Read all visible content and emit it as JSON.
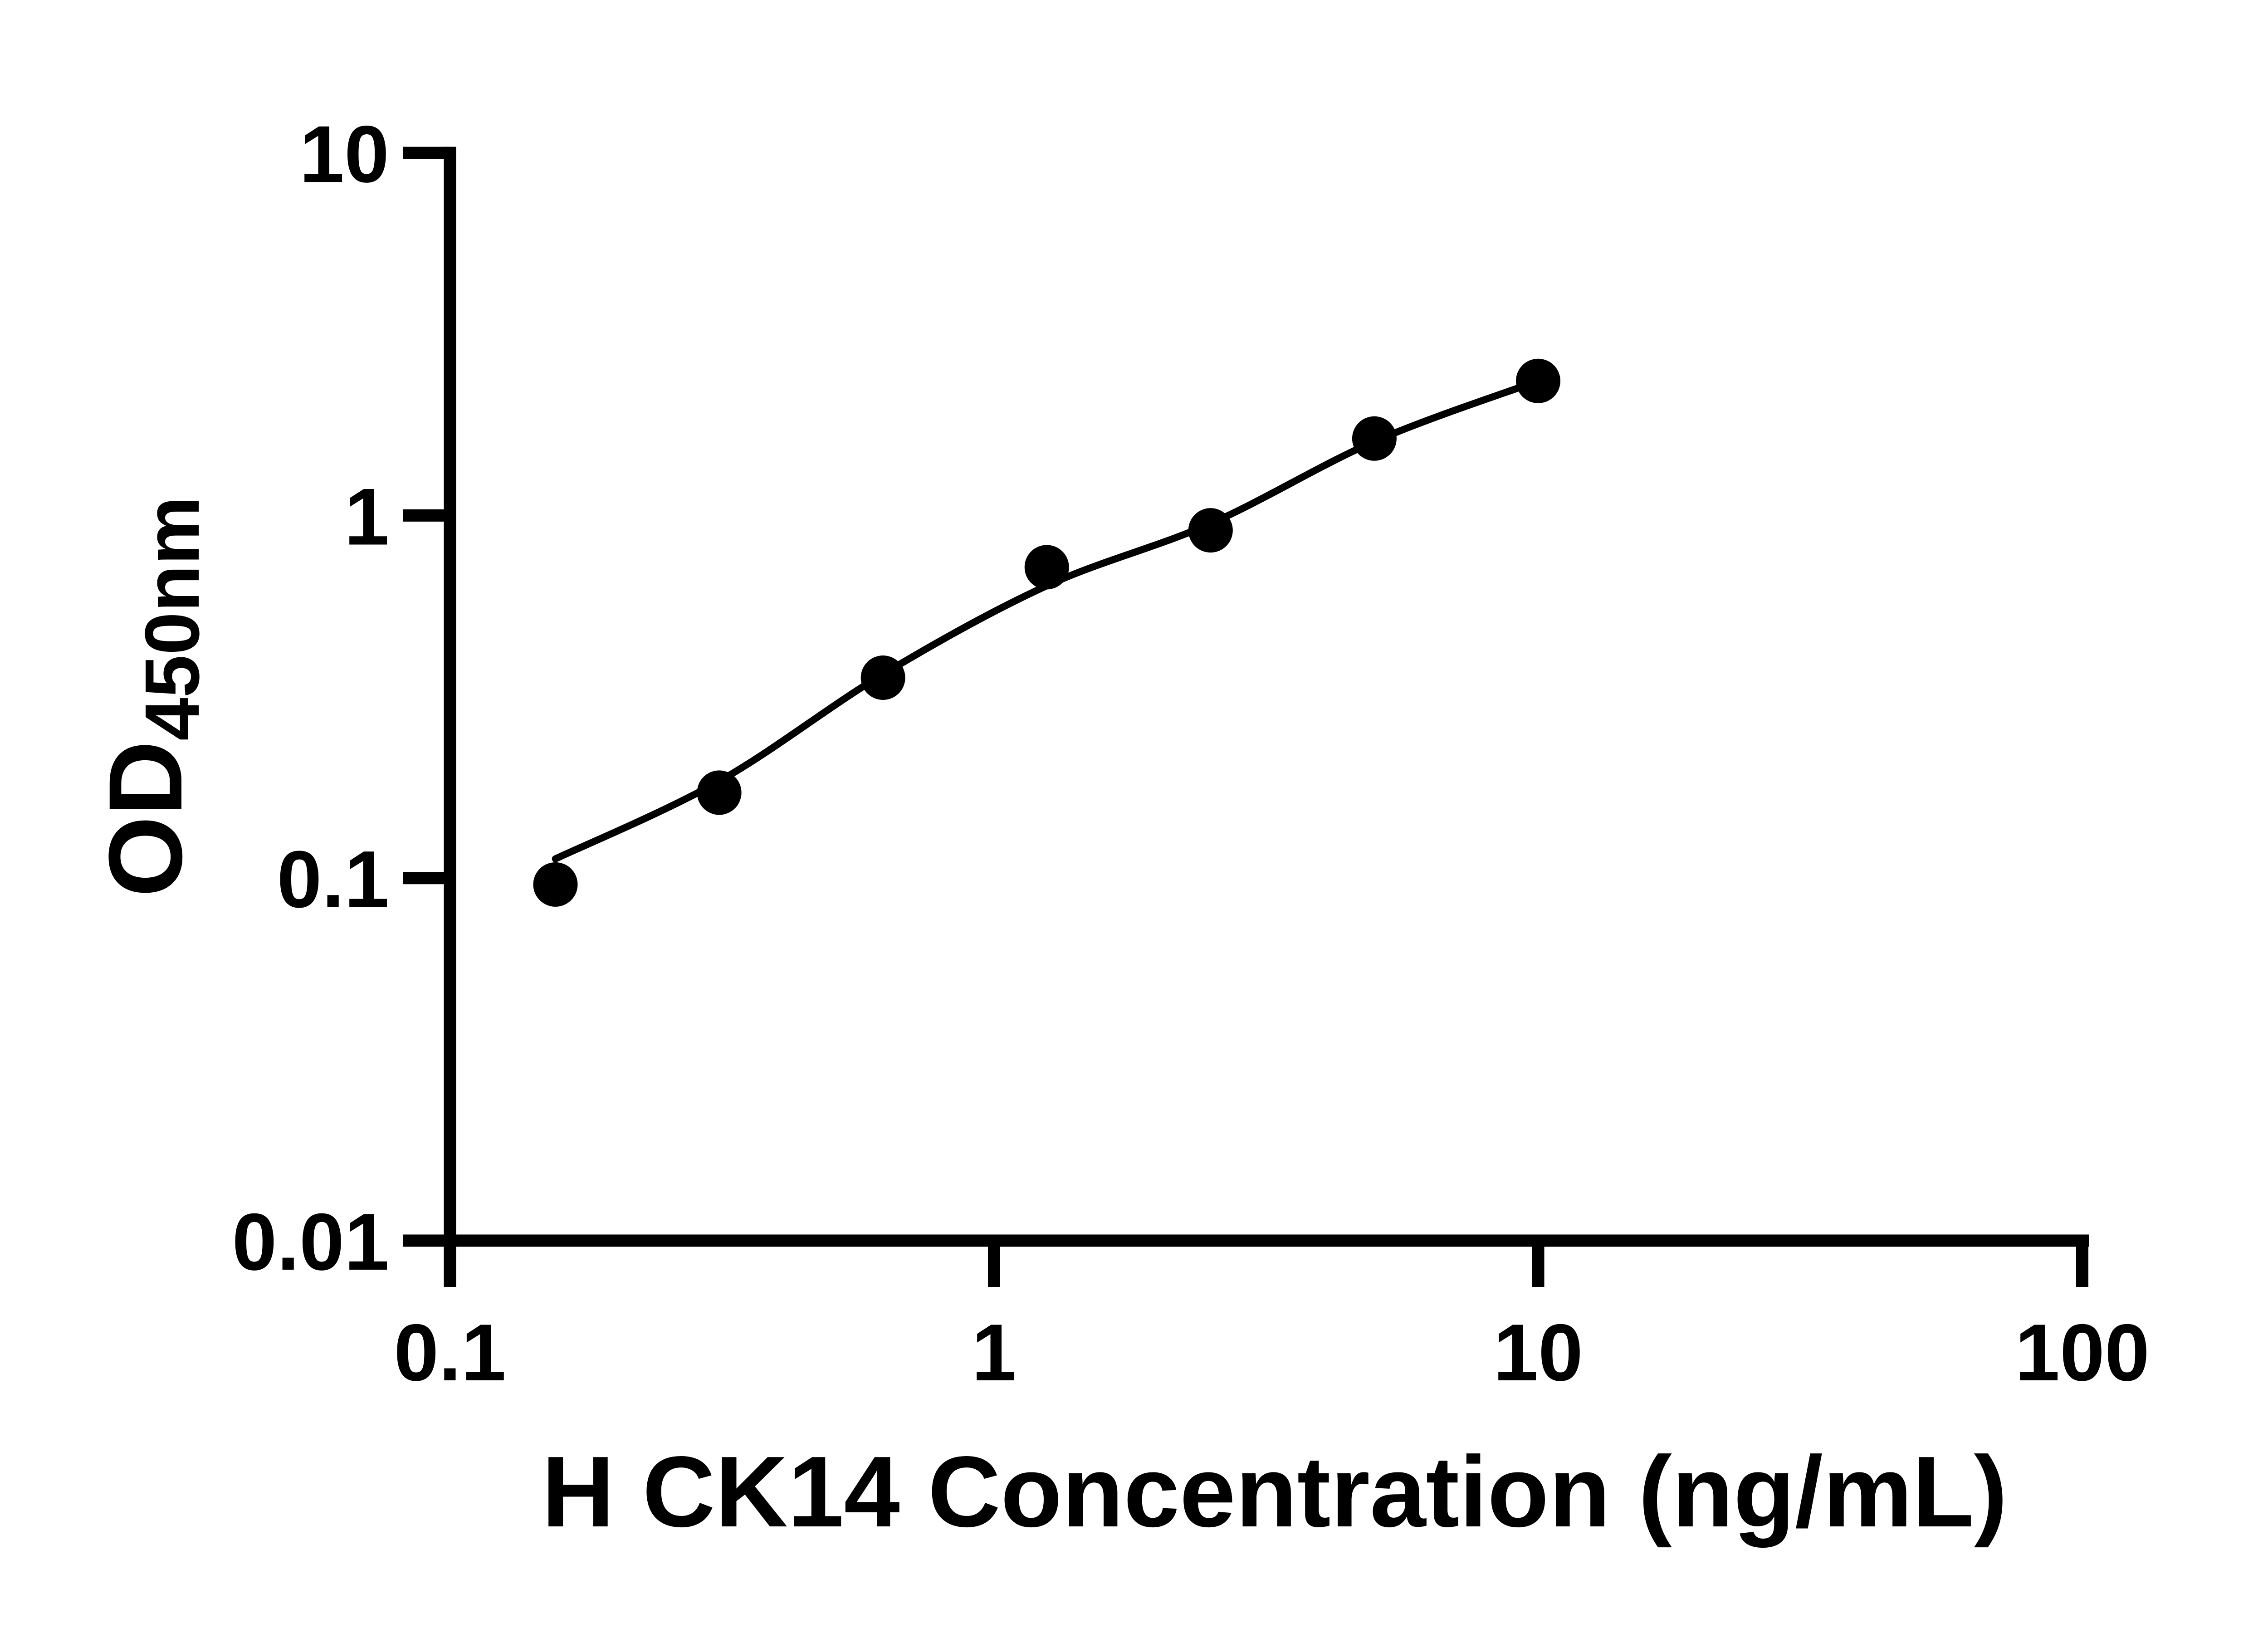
{
  "figure": {
    "background": "#ffffff",
    "foreground": "#000000"
  },
  "chart_data": {
    "type": "scatter",
    "title": "",
    "xlabel": "H CK14 Concentration (ng/mL)",
    "ylabel_main": "OD",
    "ylabel_sub": "450nm",
    "x_scale": "log",
    "y_scale": "log",
    "xlim": [
      0.1,
      100
    ],
    "ylim": [
      0.01,
      10
    ],
    "x_ticks": [
      "0.1",
      "1",
      "10",
      "100"
    ],
    "y_ticks": [
      "10",
      "1",
      "0.1",
      "0.01"
    ],
    "grid": false,
    "legend": false,
    "marker_color": "#000000",
    "line_color": "#000000",
    "series": [
      {
        "name": "standard-data-points",
        "type": "scatter",
        "x": [
          0.15625,
          0.3125,
          0.625,
          1.25,
          2.5,
          5,
          10
        ],
        "y": [
          0.096,
          0.172,
          0.357,
          0.72,
          0.91,
          1.63,
          2.35
        ]
      },
      {
        "name": "fitted-curve",
        "type": "line",
        "x": [
          0.15625,
          0.3125,
          0.625,
          1.25,
          2.5,
          5,
          10
        ],
        "y": [
          0.113,
          0.185,
          0.365,
          0.64,
          0.95,
          1.6,
          2.35
        ]
      }
    ]
  }
}
